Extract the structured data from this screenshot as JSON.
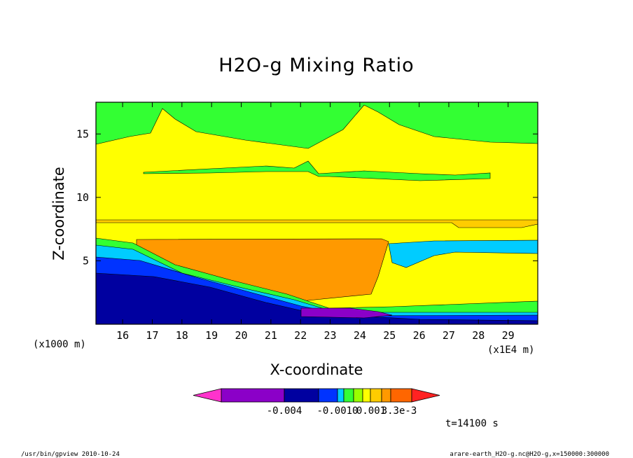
{
  "chart_data": {
    "type": "heatmap",
    "title": "H2O-g Mixing Ratio",
    "xlabel": "X-coordinate",
    "ylabel": "Z-coordinate",
    "x_unit": "(x1E4 m)",
    "y_unit": "(x1000 m)",
    "xlim": [
      15.1,
      30
    ],
    "ylim": [
      0,
      17.5
    ],
    "x_ticks": [
      "16",
      "17",
      "18",
      "19",
      "20",
      "21",
      "22",
      "23",
      "24",
      "25",
      "26",
      "27",
      "28",
      "29"
    ],
    "y_ticks": [
      "5",
      "10",
      "15"
    ],
    "colorbar": {
      "colors": [
        "#ff33cc",
        "#8b00c8",
        "#0000a0",
        "#0033ff",
        "#00ccff",
        "#33ff33",
        "#99ff00",
        "#ffff00",
        "#ffcc00",
        "#ff9900",
        "#ff6600",
        "#ff2222"
      ],
      "labels": [
        "-0.004",
        "-0.0010",
        "0.001",
        "3.3e-3"
      ]
    },
    "time_label": "t=14100 s"
  },
  "footer": {
    "left": "/usr/bin/gpview   2010-10-24",
    "right": "arare-earth_H2O-g.nc@H2O-g,x=150000:300000"
  }
}
